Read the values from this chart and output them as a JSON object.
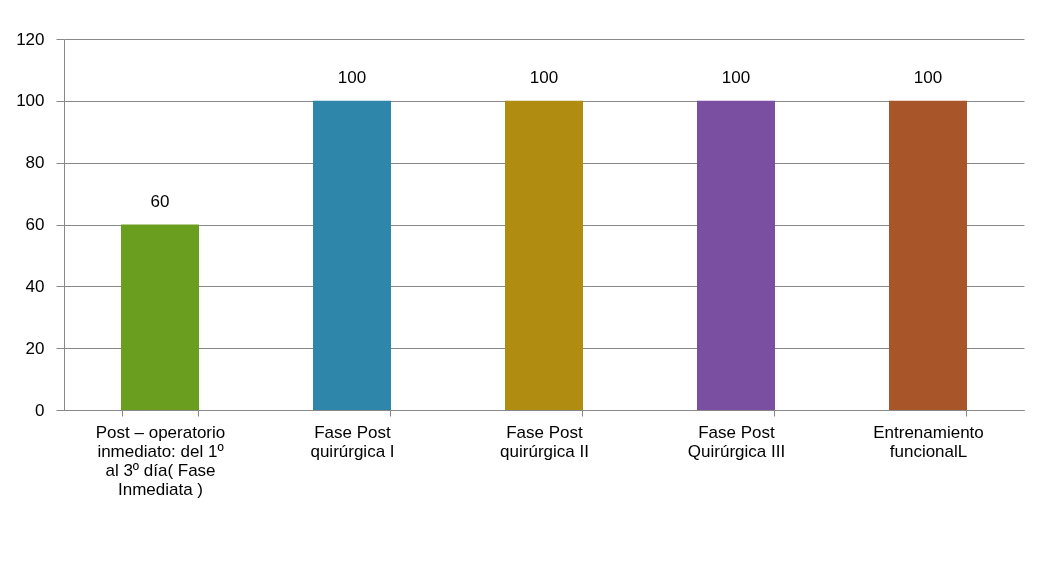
{
  "chart_data": {
    "type": "bar",
    "categories": [
      "Post – operatorio inmediato: del 1º al 3º día( Fase Inmediata )",
      "Fase Post quirúrgica I",
      "Fase Post quirúrgica II",
      "Fase Post Quirúrgica III",
      "Entrenamiento funcionalL"
    ],
    "values": [
      60,
      100,
      100,
      100,
      100
    ],
    "colors": [
      "#6a9e1f",
      "#2e86aa",
      "#b08d10",
      "#7a4ea0",
      "#a8552a"
    ],
    "ylim": [
      0,
      120
    ],
    "yticks": [
      0,
      20,
      40,
      60,
      80,
      100,
      120
    ],
    "grid": "y",
    "data_labels": true
  }
}
